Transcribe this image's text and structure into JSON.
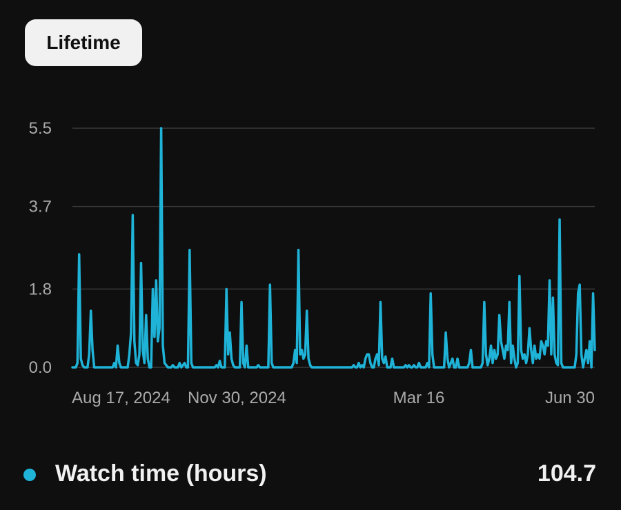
{
  "period": {
    "label": "Lifetime"
  },
  "colors": {
    "background": "#0f0f0f",
    "series": "#1fb3d8",
    "grid": "#3a3a3a",
    "tick_text": "#aaaaaa",
    "chip_bg": "#f1f1f1"
  },
  "legend": {
    "label": "Watch time (hours)",
    "total": "104.7",
    "icon": "circle-dot-icon"
  },
  "chart_data": {
    "type": "line",
    "x_axis": "time",
    "x_ticks": [
      "Aug 17, 2024",
      "Nov 30, 2024",
      "Mar 16",
      "Jun 30"
    ],
    "y_ticks": [
      "0.0",
      "1.8",
      "3.7",
      "5.5"
    ],
    "ylim": [
      0,
      5.5
    ],
    "grid": true,
    "series": [
      {
        "name": "Watch time (hours)",
        "values": [
          0,
          0,
          0,
          0.1,
          2.6,
          0.2,
          0.05,
          0,
          0,
          0,
          0.3,
          1.3,
          0.4,
          0,
          0,
          0,
          0,
          0,
          0,
          0,
          0,
          0,
          0,
          0,
          0,
          0.1,
          0,
          0.5,
          0.1,
          0,
          0,
          0,
          0,
          0,
          0.3,
          0.8,
          3.5,
          0.6,
          0.1,
          0.05,
          0.3,
          2.4,
          0.4,
          0.1,
          1.2,
          0.2,
          0,
          0,
          1.8,
          0.7,
          2,
          0.6,
          0.9,
          5.5,
          0.5,
          0.1,
          0.05,
          0,
          0,
          0,
          0.05,
          0,
          0,
          0,
          0.1,
          0,
          0.05,
          0.1,
          0,
          0,
          2.7,
          0.1,
          0,
          0,
          0,
          0,
          0,
          0,
          0,
          0,
          0,
          0,
          0,
          0,
          0,
          0,
          0.05,
          0,
          0.15,
          0,
          0,
          0,
          1.8,
          0.3,
          0.8,
          0.2,
          0.05,
          0,
          0,
          0,
          0,
          1.5,
          0.1,
          0,
          0.5,
          0,
          0,
          0,
          0,
          0,
          0,
          0.05,
          0,
          0,
          0,
          0,
          0,
          0,
          1.9,
          0.1,
          0,
          0,
          0,
          0,
          0,
          0,
          0,
          0,
          0,
          0,
          0,
          0,
          0.1,
          0.4,
          0.1,
          2.7,
          0.3,
          0.4,
          0.2,
          0.3,
          1.3,
          0.2,
          0.05,
          0,
          0,
          0,
          0,
          0,
          0,
          0,
          0,
          0,
          0,
          0,
          0,
          0,
          0,
          0,
          0,
          0,
          0,
          0,
          0,
          0,
          0,
          0,
          0,
          0,
          0.05,
          0,
          0,
          0.1,
          0,
          0.05,
          0,
          0.2,
          0.3,
          0.3,
          0.1,
          0,
          0,
          0.2,
          0.3,
          0.05,
          1.5,
          0.2,
          0.1,
          0.25,
          0,
          0,
          0,
          0.2,
          0,
          0,
          0,
          0,
          0,
          0,
          0,
          0.05,
          0,
          0.05,
          0,
          0,
          0.05,
          0,
          0,
          0.1,
          0,
          0,
          0,
          0,
          0.1,
          0,
          1.7,
          0.3,
          0,
          0,
          0,
          0,
          0,
          0,
          0,
          0.8,
          0.2,
          0,
          0.1,
          0.2,
          0,
          0,
          0.2,
          0,
          0,
          0,
          0,
          0,
          0,
          0.1,
          0.4,
          0,
          0,
          0,
          0,
          0,
          0,
          0.1,
          1.5,
          0.3,
          0.05,
          0.2,
          0.5,
          0.1,
          0.4,
          0.2,
          0.3,
          1.2,
          0.6,
          0.4,
          0.2,
          0.5,
          0.4,
          1.5,
          0.1,
          0.5,
          0.2,
          0,
          0.1,
          2.1,
          0.4,
          0.2,
          0.3,
          0.1,
          0.3,
          0.9,
          0.4,
          0.1,
          0.5,
          0.2,
          0.3,
          0.2,
          0.6,
          0.5,
          0.3,
          0.6,
          0.5,
          2,
          0.3,
          1.6,
          0.3,
          0.1,
          0.05,
          3.4,
          0.1,
          0,
          0,
          0,
          0,
          0,
          0,
          0,
          0,
          0.3,
          1.7,
          1.9,
          0.3,
          0,
          0.2,
          0.4,
          0.1,
          0.6,
          0,
          1.7,
          0.4
        ]
      }
    ]
  }
}
